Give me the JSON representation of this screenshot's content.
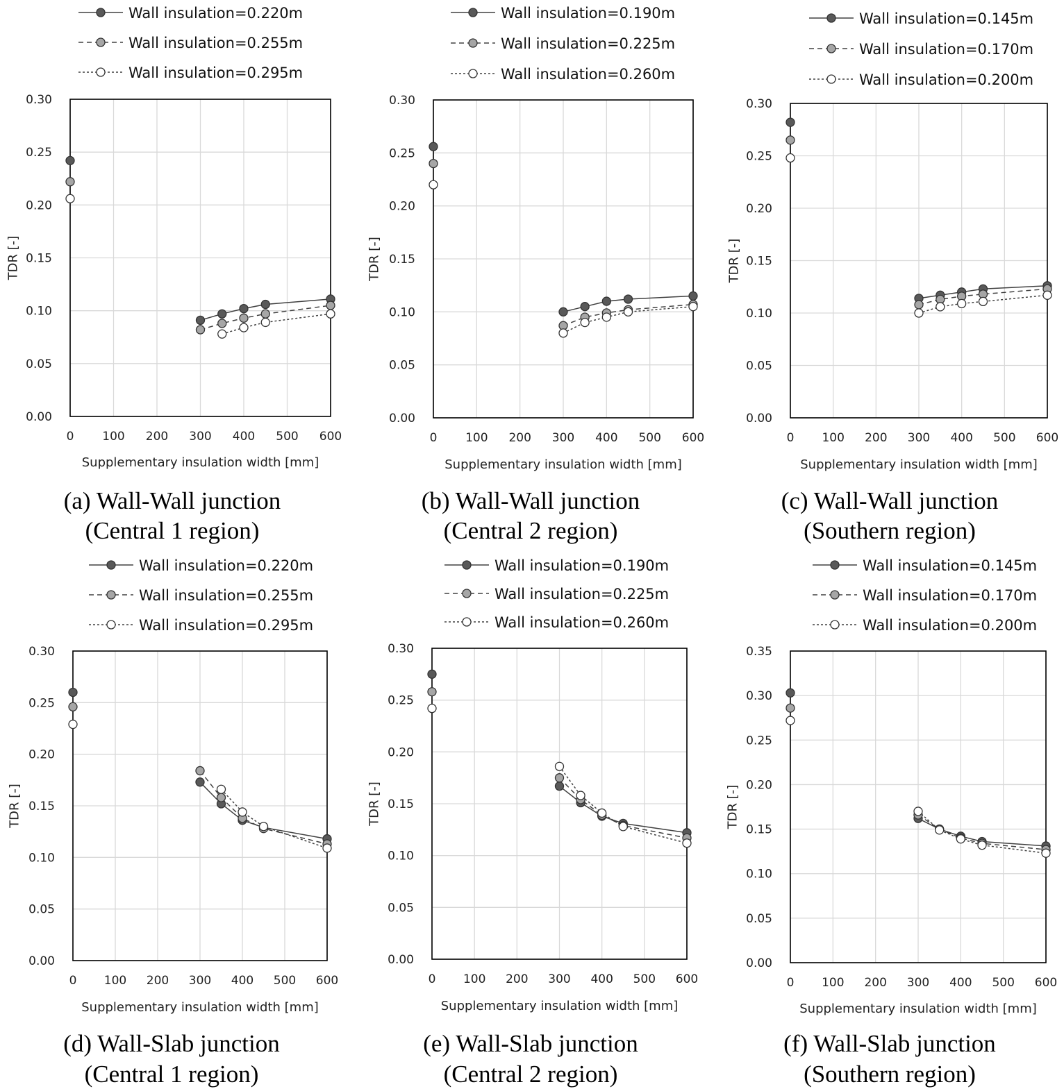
{
  "chart_data": [
    {
      "type": "line",
      "id": "a",
      "caption_line1": "(a) Wall-Wall junction",
      "caption_line2": "(Central 1 region)",
      "xlabel": "Supplementary  insulation width [mm]",
      "ylabel": "TDR [-]",
      "xlim": [
        0,
        600
      ],
      "ylim": [
        0,
        0.3
      ],
      "xticks": [
        "0",
        "100",
        "200",
        "300",
        "400",
        "500",
        "600"
      ],
      "yticks": [
        "0.00",
        "0.05",
        "0.10",
        "0.15",
        "0.20",
        "0.25",
        "0.30"
      ],
      "grid": true,
      "legend_position": "top",
      "series": [
        {
          "name": "Wall insulation=0.220m",
          "style": "solid",
          "marker_color": "#595959",
          "x": [
            0,
            300,
            350,
            400,
            450,
            600
          ],
          "y": [
            0.242,
            0.091,
            0.097,
            0.102,
            0.106,
            0.111
          ]
        },
        {
          "name": "Wall insulation=0.255m",
          "style": "dashed",
          "marker_color": "#a6a6a6",
          "x": [
            0,
            300,
            350,
            400,
            450,
            600
          ],
          "y": [
            0.222,
            0.082,
            0.088,
            0.093,
            0.097,
            0.105
          ]
        },
        {
          "name": "Wall insulation=0.295m",
          "style": "dotted",
          "marker_color": "#ffffff",
          "x": [
            0,
            350,
            400,
            450,
            600
          ],
          "y": [
            0.206,
            0.078,
            0.084,
            0.089,
            0.097
          ]
        }
      ]
    },
    {
      "type": "line",
      "id": "b",
      "caption_line1": "(b) Wall-Wall junction",
      "caption_line2": "(Central 2 region)",
      "xlabel": "Supplementary  insulation width [mm]",
      "ylabel": "TDR [-]",
      "xlim": [
        0,
        600
      ],
      "ylim": [
        0,
        0.3
      ],
      "xticks": [
        "0",
        "100",
        "200",
        "300",
        "400",
        "500",
        "600"
      ],
      "yticks": [
        "0.00",
        "0.05",
        "0.10",
        "0.15",
        "0.20",
        "0.25",
        "0.30"
      ],
      "grid": true,
      "legend_position": "top",
      "series": [
        {
          "name": "Wall insulation=0.190m",
          "style": "solid",
          "marker_color": "#595959",
          "x": [
            0,
            300,
            350,
            400,
            450,
            600
          ],
          "y": [
            0.256,
            0.1,
            0.105,
            0.11,
            0.112,
            0.115
          ]
        },
        {
          "name": "Wall insulation=0.225m",
          "style": "dashed",
          "marker_color": "#a6a6a6",
          "x": [
            0,
            300,
            350,
            400,
            450,
            600
          ],
          "y": [
            0.24,
            0.087,
            0.095,
            0.099,
            0.102,
            0.107
          ]
        },
        {
          "name": "Wall insulation=0.260m",
          "style": "dotted",
          "marker_color": "#ffffff",
          "x": [
            0,
            300,
            350,
            400,
            450,
            600
          ],
          "y": [
            0.22,
            0.08,
            0.09,
            0.095,
            0.1,
            0.105
          ]
        }
      ]
    },
    {
      "type": "line",
      "id": "c",
      "caption_line1": "(c) Wall-Wall junction",
      "caption_line2": "(Southern region)",
      "xlabel": "Supplementary  insulation width [mm]",
      "ylabel": "TDR [-]",
      "xlim": [
        0,
        600
      ],
      "ylim": [
        0,
        0.3
      ],
      "xticks": [
        "0",
        "100",
        "200",
        "300",
        "400",
        "500",
        "600"
      ],
      "yticks": [
        "0.00",
        "0.05",
        "0.10",
        "0.15",
        "0.20",
        "0.25",
        "0.30"
      ],
      "grid": true,
      "legend_position": "top",
      "series": [
        {
          "name": "Wall insulation=0.145m",
          "style": "solid",
          "marker_color": "#595959",
          "x": [
            0,
            300,
            350,
            400,
            450,
            600
          ],
          "y": [
            0.282,
            0.114,
            0.117,
            0.12,
            0.123,
            0.126
          ]
        },
        {
          "name": "Wall insulation=0.170m",
          "style": "dashed",
          "marker_color": "#a6a6a6",
          "x": [
            0,
            300,
            350,
            400,
            450,
            600
          ],
          "y": [
            0.265,
            0.108,
            0.113,
            0.116,
            0.118,
            0.123
          ]
        },
        {
          "name": "Wall insulation=0.200m",
          "style": "dotted",
          "marker_color": "#ffffff",
          "x": [
            0,
            300,
            350,
            400,
            450,
            600
          ],
          "y": [
            0.248,
            0.1,
            0.106,
            0.109,
            0.111,
            0.117
          ]
        }
      ]
    },
    {
      "type": "line",
      "id": "d",
      "caption_line1": "(d) Wall-Slab junction",
      "caption_line2": "(Central 1 region)",
      "xlabel": "Supplementary  insulation width [mm]",
      "ylabel": "TDR [-]",
      "xlim": [
        0,
        600
      ],
      "ylim": [
        0,
        0.3
      ],
      "xticks": [
        "0",
        "100",
        "200",
        "300",
        "400",
        "500",
        "600"
      ],
      "yticks": [
        "0.00",
        "0.05",
        "0.10",
        "0.15",
        "0.20",
        "0.25",
        "0.30"
      ],
      "grid": true,
      "legend_position": "top",
      "series": [
        {
          "name": "Wall insulation=0.220m",
          "style": "solid",
          "marker_color": "#595959",
          "x": [
            0,
            300,
            350,
            400,
            450,
            600
          ],
          "y": [
            0.26,
            0.173,
            0.152,
            0.136,
            0.129,
            0.118
          ]
        },
        {
          "name": "Wall insulation=0.255m",
          "style": "dashed",
          "marker_color": "#a6a6a6",
          "x": [
            0,
            300,
            350,
            400,
            450,
            600
          ],
          "y": [
            0.246,
            0.184,
            0.158,
            0.138,
            0.128,
            0.113
          ]
        },
        {
          "name": "Wall insulation=0.295m",
          "style": "dotted",
          "marker_color": "#ffffff",
          "x": [
            0,
            350,
            400,
            450,
            600
          ],
          "y": [
            0.229,
            0.166,
            0.144,
            0.13,
            0.109
          ]
        }
      ]
    },
    {
      "type": "line",
      "id": "e",
      "caption_line1": "(e) Wall-Slab junction",
      "caption_line2": "(Central 2 region)",
      "xlabel": "Supplementary  insulation width [mm]",
      "ylabel": "TDR [-]",
      "xlim": [
        0,
        600
      ],
      "ylim": [
        0,
        0.3
      ],
      "xticks": [
        "0",
        "100",
        "200",
        "300",
        "400",
        "500",
        "600"
      ],
      "yticks": [
        "0.00",
        "0.05",
        "0.10",
        "0.15",
        "0.20",
        "0.25",
        "0.30"
      ],
      "grid": true,
      "legend_position": "top",
      "series": [
        {
          "name": "Wall insulation=0.190m",
          "style": "solid",
          "marker_color": "#595959",
          "x": [
            0,
            300,
            350,
            400,
            450,
            600
          ],
          "y": [
            0.275,
            0.167,
            0.151,
            0.138,
            0.131,
            0.122
          ]
        },
        {
          "name": "Wall insulation=0.225m",
          "style": "dashed",
          "marker_color": "#a6a6a6",
          "x": [
            0,
            300,
            350,
            400,
            450,
            600
          ],
          "y": [
            0.258,
            0.175,
            0.154,
            0.139,
            0.129,
            0.117
          ]
        },
        {
          "name": "Wall insulation=0.260m",
          "style": "dotted",
          "marker_color": "#ffffff",
          "x": [
            0,
            300,
            350,
            400,
            450,
            600
          ],
          "y": [
            0.242,
            0.186,
            0.158,
            0.141,
            0.128,
            0.112
          ]
        }
      ]
    },
    {
      "type": "line",
      "id": "f",
      "caption_line1": "(f) Wall-Slab junction",
      "caption_line2": "(Southern region)",
      "xlabel": "Supplementary  insulation width [mm]",
      "ylabel": "TDR [-]",
      "xlim": [
        0,
        600
      ],
      "ylim": [
        0,
        0.35
      ],
      "xticks": [
        "0",
        "100",
        "200",
        "300",
        "400",
        "500",
        "600"
      ],
      "yticks": [
        "0.00",
        "0.05",
        "0.10",
        "0.15",
        "0.20",
        "0.25",
        "0.30",
        "0.35"
      ],
      "grid": true,
      "legend_position": "top",
      "series": [
        {
          "name": "Wall insulation=0.145m",
          "style": "solid",
          "marker_color": "#595959",
          "x": [
            0,
            300,
            350,
            400,
            450,
            600
          ],
          "y": [
            0.303,
            0.162,
            0.15,
            0.142,
            0.136,
            0.131
          ]
        },
        {
          "name": "Wall insulation=0.170m",
          "style": "dashed",
          "marker_color": "#a6a6a6",
          "x": [
            0,
            300,
            350,
            400,
            450,
            600
          ],
          "y": [
            0.286,
            0.166,
            0.15,
            0.14,
            0.134,
            0.127
          ]
        },
        {
          "name": "Wall insulation=0.200m",
          "style": "dotted",
          "marker_color": "#ffffff",
          "x": [
            0,
            300,
            350,
            400,
            450,
            600
          ],
          "y": [
            0.272,
            0.17,
            0.149,
            0.139,
            0.132,
            0.123
          ]
        }
      ]
    }
  ]
}
